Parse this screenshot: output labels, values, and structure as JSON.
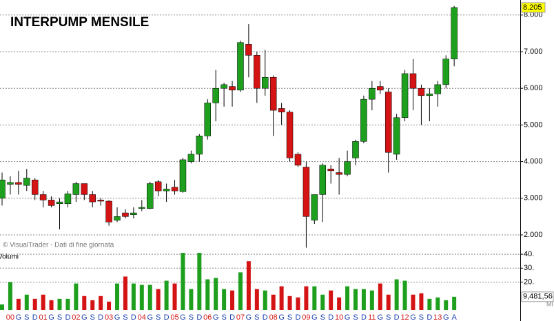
{
  "chart_data": [
    {
      "type": "candlestick",
      "title": "INTERPUMP MENSILE",
      "source": "© VisualTrader - Dati di fine giornata",
      "categories": [
        null,
        "00",
        "G",
        "S",
        "D",
        "01",
        "G",
        "S",
        "D",
        "02",
        "G",
        "S",
        "D",
        "03",
        "G",
        "S",
        "D",
        "04",
        "G",
        "S",
        "D",
        "05",
        "G",
        "S",
        "D",
        "06",
        "G",
        "S",
        "D",
        "07",
        "G",
        "S",
        "D",
        "08",
        "G",
        "S",
        "D",
        "09",
        "G",
        "S",
        "D",
        "10",
        "G",
        "S",
        "D",
        "11",
        "G",
        "S",
        "D",
        "12",
        "G",
        "S",
        "D",
        "13",
        "G",
        "A"
      ],
      "open": [
        3.0,
        3.38,
        3.43,
        3.35,
        3.5,
        3.1,
        2.95,
        2.85,
        2.85,
        3.1,
        3.4,
        3.1,
        2.95,
        2.92,
        2.4,
        2.6,
        2.55,
        2.72,
        2.72,
        3.45,
        3.2,
        3.3,
        3.18,
        4.0,
        4.2,
        4.7,
        5.6,
        6.0,
        6.05,
        5.95,
        7.2,
        6.9,
        6.0,
        6.3,
        5.45,
        5.35,
        4.2,
        3.85,
        2.4,
        3.1,
        3.8,
        3.7,
        3.65,
        4.1,
        4.55,
        5.7,
        6.05,
        5.9,
        4.2,
        5.2,
        6.4,
        6.0,
        5.8,
        5.85,
        6.1,
        6.8
      ],
      "high": [
        3.7,
        3.6,
        3.75,
        3.8,
        3.55,
        3.2,
        3.05,
        3.0,
        3.2,
        3.45,
        3.4,
        3.2,
        3.0,
        2.95,
        2.75,
        2.7,
        2.75,
        2.95,
        3.45,
        3.5,
        3.4,
        3.5,
        4.1,
        4.3,
        4.75,
        5.7,
        6.5,
        6.15,
        6.2,
        7.3,
        7.75,
        7.0,
        7.05,
        6.35,
        5.6,
        5.4,
        4.25,
        4.0,
        3.1,
        3.95,
        3.9,
        4.1,
        4.3,
        4.6,
        5.8,
        6.2,
        6.2,
        6.0,
        5.3,
        6.5,
        6.8,
        6.1,
        6.0,
        6.2,
        6.9,
        8.25
      ],
      "low": [
        2.8,
        3.1,
        3.1,
        3.2,
        2.95,
        2.75,
        2.75,
        2.15,
        2.75,
        2.9,
        2.95,
        2.75,
        2.8,
        2.25,
        2.35,
        2.45,
        2.45,
        2.65,
        2.7,
        3.05,
        2.9,
        3.1,
        3.15,
        3.95,
        4.0,
        4.6,
        5.1,
        5.5,
        5.5,
        5.9,
        6.3,
        5.6,
        5.8,
        4.7,
        5.0,
        4.0,
        3.85,
        1.65,
        2.3,
        2.35,
        3.4,
        3.1,
        3.6,
        3.9,
        4.5,
        5.4,
        5.85,
        3.7,
        4.05,
        5.1,
        5.4,
        5.0,
        5.1,
        5.5,
        6.0,
        6.6
      ],
      "close": [
        3.5,
        3.43,
        3.38,
        3.55,
        3.1,
        2.95,
        2.8,
        2.9,
        3.12,
        3.4,
        3.1,
        2.9,
        2.92,
        2.35,
        2.5,
        2.5,
        2.6,
        2.75,
        3.4,
        3.2,
        3.25,
        3.2,
        4.05,
        4.2,
        4.7,
        5.6,
        6.0,
        6.1,
        5.95,
        7.25,
        6.9,
        6.0,
        6.3,
        5.4,
        5.35,
        4.1,
        3.9,
        2.5,
        3.1,
        3.9,
        3.75,
        3.65,
        4.0,
        4.55,
        5.7,
        6.0,
        5.95,
        4.25,
        5.2,
        6.4,
        6.0,
        5.8,
        5.85,
        6.1,
        6.8,
        8.205
      ],
      "up_color": "#1ea01e",
      "down_color": "#d41414",
      "last_label": {
        "value": 8.205,
        "label": "8.205"
      },
      "ylim": [
        1.83,
        8.41
      ],
      "yticks": [
        {
          "value": 2,
          "label": "2.000"
        },
        {
          "value": 3,
          "label": "3.000"
        },
        {
          "value": 4,
          "label": "4.000"
        },
        {
          "value": 5,
          "label": "5.000"
        },
        {
          "value": 6,
          "label": "6.000"
        },
        {
          "value": 7,
          "label": "7.000"
        },
        {
          "value": 8,
          "label": "8.000"
        }
      ],
      "grid": true
    },
    {
      "type": "bar",
      "title": "Volumi",
      "corner_label": "MI",
      "values": [
        4,
        20,
        8,
        11,
        8,
        11,
        7,
        8,
        8,
        19,
        10,
        7,
        10,
        6,
        19,
        24,
        19,
        18,
        18,
        15,
        21,
        19,
        41,
        15,
        41,
        22,
        23,
        15,
        14,
        27,
        35,
        15,
        14,
        11,
        17,
        10,
        9,
        17,
        17,
        11,
        14,
        9,
        17,
        15,
        15,
        14,
        19,
        11,
        22,
        21,
        11,
        12,
        8,
        9,
        7,
        9.48
      ],
      "last_label": "9,481,56",
      "ylim": [
        0,
        43.5
      ],
      "yticks": [
        {
          "value": 20,
          "label": "20."
        },
        {
          "value": 30,
          "label": "30."
        },
        {
          "value": 40,
          "label": "40."
        }
      ],
      "grid": true
    }
  ]
}
